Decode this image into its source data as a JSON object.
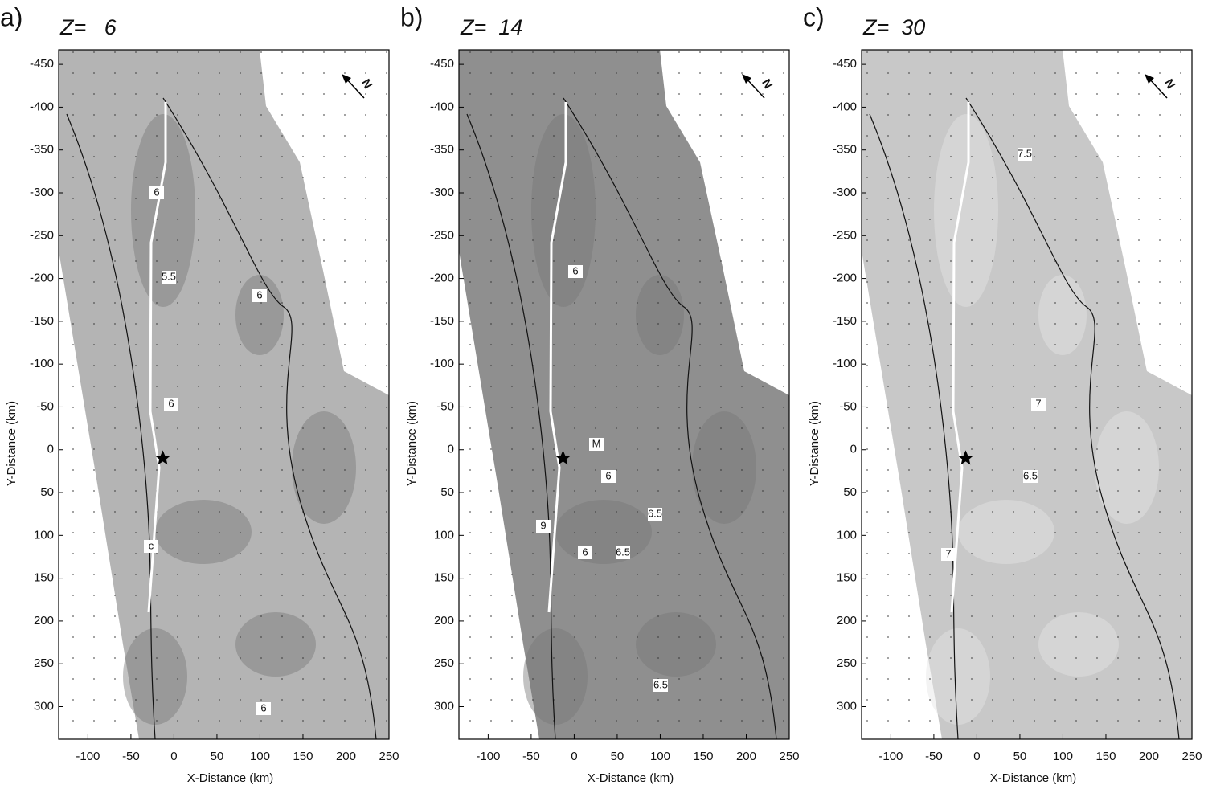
{
  "chart_data": [
    {
      "type": "contour",
      "panel": "a)",
      "title": "Z=   6",
      "x_label": "X-Distance (km)",
      "y_label": "Y-Distance (km)",
      "xlim": [
        -134,
        250
      ],
      "ylim": [
        -467,
        338
      ],
      "xticks": [
        -100,
        -50,
        0,
        50,
        100,
        150,
        200,
        250
      ],
      "yticks": [
        -450,
        -400,
        -350,
        -300,
        -250,
        -200,
        -150,
        -100,
        -50,
        0,
        50,
        100,
        150,
        200,
        250,
        300
      ],
      "contour_labels": [
        "6",
        "5.5",
        "6",
        "6",
        "c",
        "6"
      ],
      "north": "N",
      "fill": "#b4b4b4"
    },
    {
      "type": "contour",
      "panel": "b)",
      "title": "Z=  14",
      "x_label": "X-Distance (km)",
      "y_label": "Y-Distance (km)",
      "xlim": [
        -134,
        250
      ],
      "ylim": [
        -467,
        338
      ],
      "xticks": [
        -100,
        -50,
        0,
        50,
        100,
        150,
        200,
        250
      ],
      "yticks": [
        -450,
        -400,
        -350,
        -300,
        -250,
        -200,
        -150,
        -100,
        -50,
        0,
        50,
        100,
        150,
        200,
        250,
        300
      ],
      "contour_labels": [
        "6",
        "M",
        "6",
        "6.5",
        "9",
        "6",
        "6.5",
        "6.5"
      ],
      "north": "N",
      "fill": "#8f8f8f"
    },
    {
      "type": "contour",
      "panel": "c)",
      "title": "Z=  30",
      "x_label": "X-Distance (km)",
      "y_label": "Y-Distance (km)",
      "xlim": [
        -134,
        250
      ],
      "ylim": [
        -467,
        338
      ],
      "xticks": [
        -100,
        -50,
        0,
        50,
        100,
        150,
        200,
        250
      ],
      "yticks": [
        -450,
        -400,
        -350,
        -300,
        -250,
        -200,
        -150,
        -100,
        -50,
        0,
        50,
        100,
        150,
        200,
        250,
        300
      ],
      "contour_labels": [
        "7.5",
        "7",
        "6.5",
        "7"
      ],
      "north": "N",
      "fill": "#c8c8c8"
    }
  ]
}
